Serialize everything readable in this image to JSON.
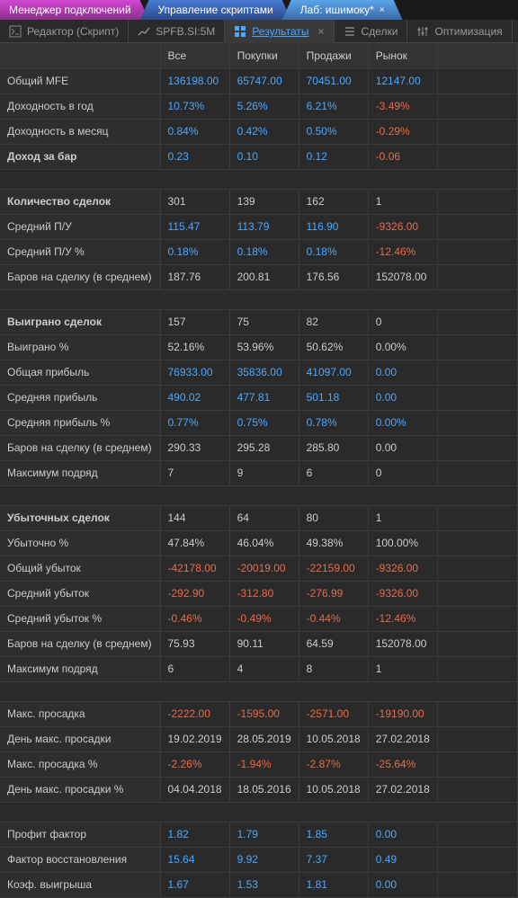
{
  "topTabs": {
    "t1": "Менеджер подключений",
    "t2": "Управление скриптами",
    "t3": "Лаб: ишимоку*",
    "close": "×"
  },
  "subTabs": {
    "editor": "Редактор (Скрипт)",
    "symbol": "SPFB.SI:5M",
    "results": "Результаты",
    "trades": "Сделки",
    "optim": "Оптимизация"
  },
  "headers": {
    "label": "",
    "all": "Все",
    "buy": "Покупки",
    "sell": "Продажи",
    "market": "Рынок"
  },
  "rows": [
    {
      "label": "Общий MFE",
      "bold": false,
      "cells": [
        {
          "v": "136198.00",
          "c": "blue"
        },
        {
          "v": "65747.00",
          "c": "blue"
        },
        {
          "v": "70451.00",
          "c": "blue"
        },
        {
          "v": "12147.00",
          "c": "blue"
        }
      ]
    },
    {
      "label": "Доходность в год",
      "bold": false,
      "cells": [
        {
          "v": "10.73%",
          "c": "blue"
        },
        {
          "v": "5.26%",
          "c": "blue"
        },
        {
          "v": "6.21%",
          "c": "blue"
        },
        {
          "v": "-3.49%",
          "c": "red"
        }
      ]
    },
    {
      "label": "Доходность в месяц",
      "bold": false,
      "cells": [
        {
          "v": "0.84%",
          "c": "blue"
        },
        {
          "v": "0.42%",
          "c": "blue"
        },
        {
          "v": "0.50%",
          "c": "blue"
        },
        {
          "v": "-0.29%",
          "c": "red"
        }
      ]
    },
    {
      "label": "Доход за бар",
      "bold": true,
      "cells": [
        {
          "v": "0.23",
          "c": "blue"
        },
        {
          "v": "0.10",
          "c": "blue"
        },
        {
          "v": "0.12",
          "c": "blue"
        },
        {
          "v": "-0.06",
          "c": "red"
        }
      ]
    },
    {
      "spacer": true
    },
    {
      "label": "Количество сделок",
      "bold": true,
      "cells": [
        {
          "v": "301",
          "c": "gray"
        },
        {
          "v": "139",
          "c": "gray"
        },
        {
          "v": "162",
          "c": "gray"
        },
        {
          "v": "1",
          "c": "gray"
        }
      ]
    },
    {
      "label": "Средний П/У",
      "bold": false,
      "cells": [
        {
          "v": "115.47",
          "c": "blue"
        },
        {
          "v": "113.79",
          "c": "blue"
        },
        {
          "v": "116.90",
          "c": "blue"
        },
        {
          "v": "-9326.00",
          "c": "red"
        }
      ]
    },
    {
      "label": "Средний П/У %",
      "bold": false,
      "cells": [
        {
          "v": "0.18%",
          "c": "blue"
        },
        {
          "v": "0.18%",
          "c": "blue"
        },
        {
          "v": "0.18%",
          "c": "blue"
        },
        {
          "v": "-12.46%",
          "c": "red"
        }
      ]
    },
    {
      "label": "Баров на сделку (в среднем)",
      "bold": false,
      "cells": [
        {
          "v": "187.76",
          "c": "gray"
        },
        {
          "v": "200.81",
          "c": "gray"
        },
        {
          "v": "176.56",
          "c": "gray"
        },
        {
          "v": "152078.00",
          "c": "gray"
        }
      ]
    },
    {
      "spacer": true
    },
    {
      "label": "Выиграно сделок",
      "bold": true,
      "cells": [
        {
          "v": "157",
          "c": "gray"
        },
        {
          "v": "75",
          "c": "gray"
        },
        {
          "v": "82",
          "c": "gray"
        },
        {
          "v": "0",
          "c": "gray"
        }
      ]
    },
    {
      "label": "Выиграно %",
      "bold": false,
      "cells": [
        {
          "v": "52.16%",
          "c": "gray"
        },
        {
          "v": "53.96%",
          "c": "gray"
        },
        {
          "v": "50.62%",
          "c": "gray"
        },
        {
          "v": "0.00%",
          "c": "gray"
        }
      ]
    },
    {
      "label": "Общая прибыль",
      "bold": false,
      "cells": [
        {
          "v": "76933.00",
          "c": "blue"
        },
        {
          "v": "35836.00",
          "c": "blue"
        },
        {
          "v": "41097.00",
          "c": "blue"
        },
        {
          "v": "0.00",
          "c": "blue"
        }
      ]
    },
    {
      "label": "Средняя прибыль",
      "bold": false,
      "cells": [
        {
          "v": "490.02",
          "c": "blue"
        },
        {
          "v": "477.81",
          "c": "blue"
        },
        {
          "v": "501.18",
          "c": "blue"
        },
        {
          "v": "0.00",
          "c": "blue"
        }
      ]
    },
    {
      "label": "Средняя прибыль %",
      "bold": false,
      "cells": [
        {
          "v": "0.77%",
          "c": "blue"
        },
        {
          "v": "0.75%",
          "c": "blue"
        },
        {
          "v": "0.78%",
          "c": "blue"
        },
        {
          "v": "0.00%",
          "c": "blue"
        }
      ]
    },
    {
      "label": "Баров на сделку (в среднем)",
      "bold": false,
      "cells": [
        {
          "v": "290.33",
          "c": "gray"
        },
        {
          "v": "295.28",
          "c": "gray"
        },
        {
          "v": "285.80",
          "c": "gray"
        },
        {
          "v": "0.00",
          "c": "gray"
        }
      ]
    },
    {
      "label": "Максимум подряд",
      "bold": false,
      "cells": [
        {
          "v": "7",
          "c": "gray"
        },
        {
          "v": "9",
          "c": "gray"
        },
        {
          "v": "6",
          "c": "gray"
        },
        {
          "v": "0",
          "c": "gray"
        }
      ]
    },
    {
      "spacer": true
    },
    {
      "label": "Убыточных сделок",
      "bold": true,
      "cells": [
        {
          "v": "144",
          "c": "gray"
        },
        {
          "v": "64",
          "c": "gray"
        },
        {
          "v": "80",
          "c": "gray"
        },
        {
          "v": "1",
          "c": "gray"
        }
      ]
    },
    {
      "label": "Убыточно %",
      "bold": false,
      "cells": [
        {
          "v": "47.84%",
          "c": "gray"
        },
        {
          "v": "46.04%",
          "c": "gray"
        },
        {
          "v": "49.38%",
          "c": "gray"
        },
        {
          "v": "100.00%",
          "c": "gray"
        }
      ]
    },
    {
      "label": "Общий убыток",
      "bold": false,
      "cells": [
        {
          "v": "-42178.00",
          "c": "red"
        },
        {
          "v": "-20019.00",
          "c": "red"
        },
        {
          "v": "-22159.00",
          "c": "red"
        },
        {
          "v": "-9326.00",
          "c": "red"
        }
      ]
    },
    {
      "label": "Средний убыток",
      "bold": false,
      "cells": [
        {
          "v": "-292.90",
          "c": "red"
        },
        {
          "v": "-312.80",
          "c": "red"
        },
        {
          "v": "-276.99",
          "c": "red"
        },
        {
          "v": "-9326.00",
          "c": "red"
        }
      ]
    },
    {
      "label": "Средний убыток %",
      "bold": false,
      "cells": [
        {
          "v": "-0.46%",
          "c": "red"
        },
        {
          "v": "-0.49%",
          "c": "red"
        },
        {
          "v": "-0.44%",
          "c": "red"
        },
        {
          "v": "-12.46%",
          "c": "red"
        }
      ]
    },
    {
      "label": "Баров на сделку (в среднем)",
      "bold": false,
      "cells": [
        {
          "v": "75.93",
          "c": "gray"
        },
        {
          "v": "90.11",
          "c": "gray"
        },
        {
          "v": "64.59",
          "c": "gray"
        },
        {
          "v": "152078.00",
          "c": "gray"
        }
      ]
    },
    {
      "label": "Максимум подряд",
      "bold": false,
      "cells": [
        {
          "v": "6",
          "c": "gray"
        },
        {
          "v": "4",
          "c": "gray"
        },
        {
          "v": "8",
          "c": "gray"
        },
        {
          "v": "1",
          "c": "gray"
        }
      ]
    },
    {
      "spacer": true
    },
    {
      "label": "Макс. просадка",
      "bold": false,
      "cells": [
        {
          "v": "-2222.00",
          "c": "red"
        },
        {
          "v": "-1595.00",
          "c": "red"
        },
        {
          "v": "-2571.00",
          "c": "red"
        },
        {
          "v": "-19190.00",
          "c": "red"
        }
      ]
    },
    {
      "label": "День макс. просадки",
      "bold": false,
      "cells": [
        {
          "v": "19.02.2019",
          "c": "gray"
        },
        {
          "v": "28.05.2019",
          "c": "gray"
        },
        {
          "v": "10.05.2018",
          "c": "gray"
        },
        {
          "v": "27.02.2018",
          "c": "gray"
        }
      ]
    },
    {
      "label": "Макс. просадка %",
      "bold": false,
      "cells": [
        {
          "v": "-2.26%",
          "c": "red"
        },
        {
          "v": "-1.94%",
          "c": "red"
        },
        {
          "v": "-2.87%",
          "c": "red"
        },
        {
          "v": "-25.64%",
          "c": "red"
        }
      ]
    },
    {
      "label": "День макс. просадки %",
      "bold": false,
      "cells": [
        {
          "v": "04.04.2018",
          "c": "gray"
        },
        {
          "v": "18.05.2016",
          "c": "gray"
        },
        {
          "v": "10.05.2018",
          "c": "gray"
        },
        {
          "v": "27.02.2018",
          "c": "gray"
        }
      ]
    },
    {
      "spacer": true
    },
    {
      "label": "Профит фактор",
      "bold": false,
      "cells": [
        {
          "v": "1.82",
          "c": "blue"
        },
        {
          "v": "1.79",
          "c": "blue"
        },
        {
          "v": "1.85",
          "c": "blue"
        },
        {
          "v": "0.00",
          "c": "blue"
        }
      ]
    },
    {
      "label": "Фактор восстановления",
      "bold": false,
      "cells": [
        {
          "v": "15.64",
          "c": "blue"
        },
        {
          "v": "9.92",
          "c": "blue"
        },
        {
          "v": "7.37",
          "c": "blue"
        },
        {
          "v": "0.49",
          "c": "blue"
        }
      ]
    },
    {
      "label": "Коэф. выигрыша",
      "bold": false,
      "cells": [
        {
          "v": "1.67",
          "c": "blue"
        },
        {
          "v": "1.53",
          "c": "blue"
        },
        {
          "v": "1.81",
          "c": "blue"
        },
        {
          "v": "0.00",
          "c": "blue"
        }
      ]
    }
  ]
}
